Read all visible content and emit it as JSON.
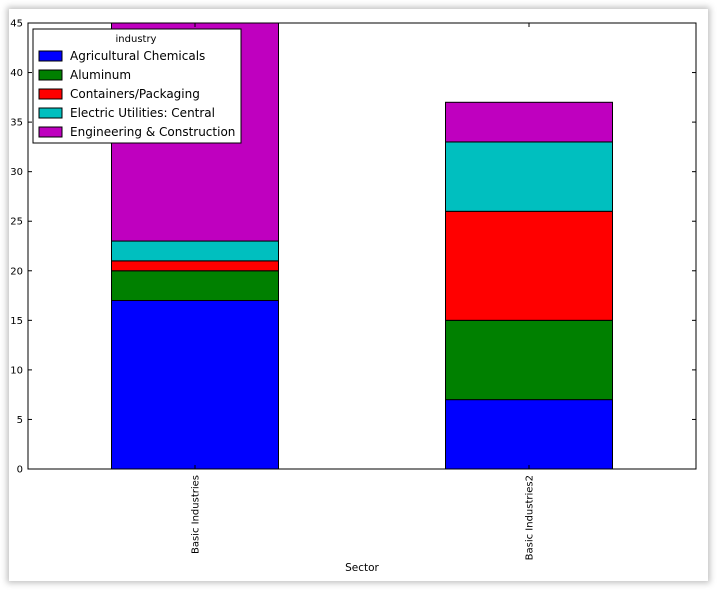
{
  "chart_data": {
    "type": "bar",
    "stacked": true,
    "categories": [
      "Basic Industries",
      "Basic Industries2"
    ],
    "xlabel": "Sector",
    "ylabel": "",
    "ylim": [
      0,
      45
    ],
    "yticks": [
      0,
      5,
      10,
      15,
      20,
      25,
      30,
      35,
      40,
      45
    ],
    "grid": false,
    "legend_title": "industry",
    "legend_position": "top-left",
    "series": [
      {
        "name": "Agricultural Chemicals",
        "color": "#0000ff",
        "values": [
          17,
          7
        ]
      },
      {
        "name": "Aluminum",
        "color": "#008000",
        "values": [
          3,
          8
        ]
      },
      {
        "name": "Containers/Packaging",
        "color": "#ff0000",
        "values": [
          1,
          11
        ]
      },
      {
        "name": "Electric Utilities: Central",
        "color": "#00bfbf",
        "values": [
          2,
          7
        ]
      },
      {
        "name": "Engineering & Construction",
        "color": "#bf00bf",
        "values": [
          22,
          4
        ]
      }
    ]
  }
}
